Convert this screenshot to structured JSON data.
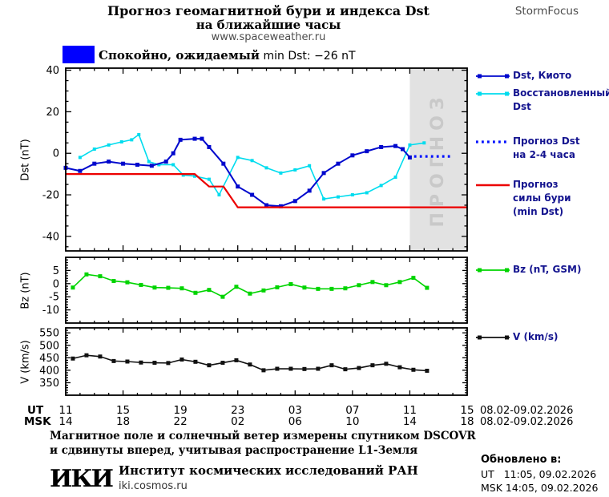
{
  "header": {
    "title_line1": "Прогноз геомагнитной бури и индекса Dst",
    "title_line2": "на ближайшие часы",
    "website": "www.spaceweather.ru",
    "brand": "StormFocus"
  },
  "status": {
    "text_bold": "Спокойно, ожидаемый",
    "text_rest": " min Dst: −26 nT",
    "box_color": "#0000ff"
  },
  "legend": [
    {
      "lines": [
        "Dst, Киото"
      ],
      "color": "#0008cd",
      "style": "marker-line"
    },
    {
      "lines": [
        "Восстановленный",
        "Dst"
      ],
      "color": "#00dcee",
      "style": "marker-line"
    },
    {
      "lines": [
        "Прогноз Dst",
        "на 2-4 часа"
      ],
      "color": "#0010ff",
      "style": "dotted"
    },
    {
      "lines": [
        "Прогноз",
        "силы бури",
        "(min Dst)"
      ],
      "color": "#ec0000",
      "style": "line"
    },
    {
      "lines": [
        "Bz (nT, GSM)"
      ],
      "color": "#00d400",
      "style": "marker-line"
    },
    {
      "lines": [
        "V (km/s)"
      ],
      "color": "#111111",
      "style": "marker-line"
    }
  ],
  "chart_data": [
    {
      "type": "line",
      "ylabel": "Dst (nT)",
      "xlim": [
        0,
        28
      ],
      "ylim": [
        -47,
        41
      ],
      "yticks": [
        -40,
        -20,
        0,
        20,
        40
      ],
      "ytick_minor": 5,
      "xticks": [
        0,
        4,
        8,
        12,
        16,
        20,
        24,
        28
      ],
      "xtick_minor": 1,
      "forecast_band": {
        "from": 24,
        "to": 28,
        "label": "ПРОГНОЗ",
        "fill": "#e2e2e2"
      },
      "series": [
        {
          "name": "Восстановленный Dst",
          "color": "#00dcee",
          "width": 1.6,
          "marker": 4,
          "x": [
            1,
            2,
            3,
            3.9,
            4.6,
            5.1,
            5.8,
            6.5,
            7.5,
            8.2,
            9,
            10,
            10.7,
            12,
            13,
            14,
            15,
            16,
            17,
            18,
            19,
            20,
            21,
            22,
            23,
            24,
            25
          ],
          "y": [
            -2,
            2,
            4,
            5.5,
            6.5,
            9,
            -4,
            -5.5,
            -5.5,
            -10.5,
            -11,
            -12.5,
            -20,
            -2,
            -3.5,
            -7,
            -9.5,
            -8,
            -6,
            -22,
            -21,
            -20,
            -19,
            -15.5,
            -11.5,
            4,
            5
          ]
        },
        {
          "name": "Dst, Киото",
          "color": "#0008cd",
          "width": 2,
          "marker": 5,
          "x": [
            0,
            1,
            2,
            3,
            4,
            5,
            6,
            7,
            7.5,
            8,
            9,
            9.5,
            10,
            11,
            12,
            13,
            14,
            15,
            16,
            17,
            18,
            19,
            20,
            21,
            22,
            23,
            23.5,
            24
          ],
          "y": [
            -7,
            -8.5,
            -5,
            -4,
            -5,
            -5.5,
            -6,
            -4,
            0,
            6.5,
            7,
            7,
            3,
            -5,
            -16,
            -20,
            -25,
            -25.5,
            -23,
            -18,
            -9.5,
            -5,
            -1,
            1,
            3,
            3.5,
            2,
            -2
          ]
        },
        {
          "name": "Прогноз Dst на 2-4 часа",
          "color": "#0010ff",
          "width": 3.2,
          "dotted": true,
          "x": [
            24.3,
            27
          ],
          "y": [
            -1.5,
            -1.5
          ]
        },
        {
          "name": "Прогноз силы бури (min Dst)",
          "color": "#ec0000",
          "width": 2.2,
          "x": [
            0,
            9,
            10,
            11,
            12,
            28
          ],
          "y": [
            -10,
            -10,
            -16,
            -16,
            -26,
            -26
          ]
        }
      ]
    },
    {
      "type": "line",
      "ylabel": "Bz (nT)",
      "xlim": [
        0,
        28
      ],
      "ylim": [
        -15,
        10
      ],
      "yticks": [
        -10,
        -5,
        0,
        5
      ],
      "ytick_minor": 1,
      "xticks": [
        0,
        4,
        8,
        12,
        16,
        20,
        24,
        28
      ],
      "xtick_minor": 1,
      "series": [
        {
          "name": "Bz (nT, GSM)",
          "color": "#00d400",
          "width": 1.6,
          "marker": 5,
          "x": [
            0.5,
            1.45,
            2.4,
            3.35,
            4.3,
            5.25,
            6.2,
            7.15,
            8.1,
            9.05,
            10,
            10.95,
            11.9,
            12.85,
            13.8,
            14.75,
            15.7,
            16.65,
            17.6,
            18.55,
            19.5,
            20.45,
            21.4,
            22.35,
            23.3,
            24.25,
            25.2
          ],
          "y": [
            -1.5,
            3.5,
            2.8,
            1.0,
            0.5,
            -0.5,
            -1.5,
            -1.6,
            -1.8,
            -3.5,
            -2.4,
            -5.0,
            -1.2,
            -3.8,
            -2.6,
            -1.4,
            -0.2,
            -1.5,
            -2.0,
            -2.0,
            -1.8,
            -0.6,
            0.6,
            -0.6,
            0.6,
            2.2,
            -1.6
          ]
        }
      ]
    },
    {
      "type": "line",
      "ylabel": "V (km/s)",
      "xlim": [
        0,
        28
      ],
      "ylim": [
        300,
        570
      ],
      "yticks": [
        350,
        400,
        450,
        500,
        550
      ],
      "ytick_minor": 10,
      "xticks": [
        0,
        4,
        8,
        12,
        16,
        20,
        24,
        28
      ],
      "xtick_minor": 1,
      "series": [
        {
          "name": "V (km/s)",
          "color": "#111111",
          "width": 1.6,
          "marker": 5,
          "x": [
            0.5,
            1.45,
            2.4,
            3.35,
            4.3,
            5.25,
            6.2,
            7.15,
            8.1,
            9.05,
            10,
            10.95,
            11.9,
            12.85,
            13.8,
            14.75,
            15.7,
            16.65,
            17.6,
            18.55,
            19.5,
            20.45,
            21.4,
            22.35,
            23.3,
            24.25,
            25.2
          ],
          "y": [
            447,
            460,
            455,
            437,
            435,
            431,
            430,
            429,
            443,
            434,
            420,
            430,
            440,
            423,
            400,
            406,
            406,
            405,
            406,
            420,
            404,
            409,
            420,
            426,
            412,
            402,
            398
          ]
        }
      ]
    }
  ],
  "xaxis": {
    "ut_label": "UT",
    "msk_label": "MSK",
    "ut_hours": [
      "11",
      "15",
      "19",
      "23",
      "03",
      "07",
      "11",
      "15"
    ],
    "msk_hours": [
      "14",
      "18",
      "22",
      "02",
      "06",
      "10",
      "14",
      "18"
    ],
    "ut_date": "08.02-09.02.2026",
    "msk_date": "08.02-09.02.2026"
  },
  "footer": {
    "note_line1": "Магнитное поле и солнечный ветер измерены спутником DSCOVR",
    "note_line2": "и сдвинуты вперед, учитывая распространение L1-Земля",
    "logo": "ИКИ",
    "institute": "Институт космических исследований РАН",
    "site": "iki.cosmos.ru",
    "updated_label": "Обновлено в:",
    "updated_ut": "UT   11:05, 09.02.2026",
    "updated_msk": "MSK 14:05, 09.02.2026"
  }
}
